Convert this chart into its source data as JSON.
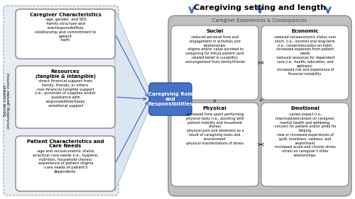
{
  "title_top": "Caregiving setting and length",
  "white": "#ffffff",
  "gray_box_color": "#c0c0c0",
  "blue_box_color": "#4472c4",
  "light_blue_arrow": "#4472c4",
  "social_context_label": "Social context\n(including gender norms)",
  "center_box_title": "Caregiving Role\nand\nResponsibilities",
  "caregiver_exp_label": "Caregiver Experiences & Consequences",
  "left_boxes": [
    {
      "title": "Caregiver Characteristics",
      "title2": "",
      "content": "-age, gender, and SES\n-family structure and\nrole/responsibilities\n-relationship and commitment to\npatient\n-faith"
    },
    {
      "title": "Resources",
      "title2": "(tangible & intangible)",
      "content": "-direct financial support from\nfamily, friends, or others\n-non-financial tangible support\n(i.e., provision of supplies and/or\nassistance with\nresponsibilities/tasks\n-emotional support"
    },
    {
      "title": "Patient Characteristics and\nCare Needs",
      "title2": "",
      "content": "-age and socioeconomic status\n-practical care needs (i.e., hygiene,\nnutrition, household chores)\n-experience of patient stigma\n-care needs of patient's\ndependents"
    }
  ],
  "inner_boxes": [
    {
      "title": "Social",
      "content": "-reduced personal time and\nengagement in activities and\nrelationships\n-stigma and/or value ascribed to\ncaregiving for fistula patient (and\nrelated belief in curability)\n-estrangement from family/friends",
      "pos": "TL"
    },
    {
      "title": "Economic",
      "content": "-reduced socioeconomic status over\nshort- (i.e., income) and long-term\n(i.e., career/education-on-hold)\n-increased expenses from patient\nneeds\n-reduced resources for dependent\ncare (i.e., health, education, and\nwellness)\n-increased risk and experience of\nfinancial instability",
      "pos": "TR"
    },
    {
      "title": "Physical",
      "content": "-increased time spent performing\nphysical tasks (i.e., assisting with\npatient mobility and household\nchores)\n-physical pain and weakness as a\nresult of caregiving tasks and\nenvironment\n-physical manifestations of stress",
      "pos": "BL"
    },
    {
      "title": "Emotional",
      "content": "-varied impact (i.e.,\nimproved/worsened) on caregiver\nmental health and wellbeing\n-concern for patient and/or pride for\nhelping\n-new or increased experiences of\nguilt, loneliness, sadness, and\nresentment\n-increased acute and chronic stress\n-strain on caregiver's other\nrelationships",
      "pos": "BR"
    }
  ]
}
